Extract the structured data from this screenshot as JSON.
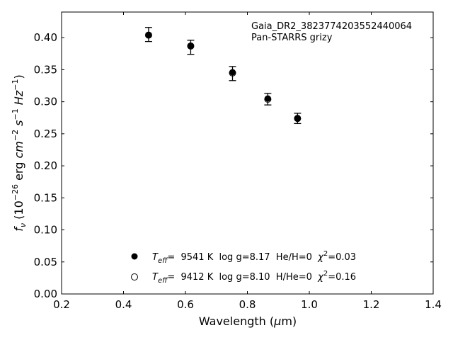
{
  "chart_data": {
    "type": "scatter",
    "title": "",
    "xlabel": "Wavelength",
    "xlabel_unit_prefix": "(",
    "xlabel_unit_mu": "μ",
    "xlabel_unit_suffix": "m)",
    "ylabel_f": "f",
    "ylabel_nu": "ν",
    "ylabel_prefix": " (10",
    "ylabel_exp26": "−26",
    "ylabel_erg": " erg ",
    "ylabel_cm": "cm",
    "ylabel_exp2": "−2",
    "ylabel_s": " s",
    "ylabel_exp1a": "−1",
    "ylabel_hz": " Hz",
    "ylabel_exp1b": "−1",
    "ylabel_close": ")",
    "xlim": [
      0.2,
      1.4
    ],
    "ylim": [
      0.0,
      0.44
    ],
    "xticks": [
      "0.2",
      "0.4",
      "0.6",
      "0.8",
      "1.0",
      "1.2",
      "1.4"
    ],
    "yticks": [
      "0.00",
      "0.05",
      "0.10",
      "0.15",
      "0.20",
      "0.25",
      "0.30",
      "0.35",
      "0.40"
    ],
    "annotation_line1": "Gaia_DR2_3823774203552440064",
    "annotation_line2": "Pan-STARRS grizy",
    "series": [
      {
        "kind": "observed",
        "color": "#000000",
        "points": [
          {
            "x": 0.481,
            "y": 0.405,
            "err": 0.011
          },
          {
            "x": 0.617,
            "y": 0.385,
            "err": 0.011
          },
          {
            "x": 0.752,
            "y": 0.344,
            "err": 0.011
          },
          {
            "x": 0.866,
            "y": 0.304,
            "err": 0.009
          },
          {
            "x": 0.962,
            "y": 0.274,
            "err": 0.008
          }
        ]
      },
      {
        "kind": "model-filled",
        "color": "#000000",
        "points": [
          {
            "x": 0.481,
            "y": 0.404
          },
          {
            "x": 0.617,
            "y": 0.387
          },
          {
            "x": 0.752,
            "y": 0.346
          },
          {
            "x": 0.866,
            "y": 0.305
          },
          {
            "x": 0.962,
            "y": 0.274
          }
        ]
      },
      {
        "kind": "model-open",
        "color": "#000000",
        "points": [
          {
            "x": 0.481,
            "y": 0.404
          },
          {
            "x": 0.617,
            "y": 0.387
          },
          {
            "x": 0.752,
            "y": 0.345
          },
          {
            "x": 0.866,
            "y": 0.304
          },
          {
            "x": 0.962,
            "y": 0.274
          }
        ]
      }
    ],
    "legend": [
      {
        "marker": "filled",
        "teff_label": "T",
        "teff_sub": "eff",
        "text_a": "=  9541 K  log g=8.17  He/H=0  ",
        "chi": "χ",
        "chi_sup": "2",
        "text_b": "=0.03"
      },
      {
        "marker": "open",
        "teff_label": "T",
        "teff_sub": "eff",
        "text_a": "=  9412 K  log g=8.10  H/He=0  ",
        "chi": "χ",
        "chi_sup": "2",
        "text_b": "=0.16"
      }
    ],
    "legend_position": "lower-center",
    "grid": false
  }
}
